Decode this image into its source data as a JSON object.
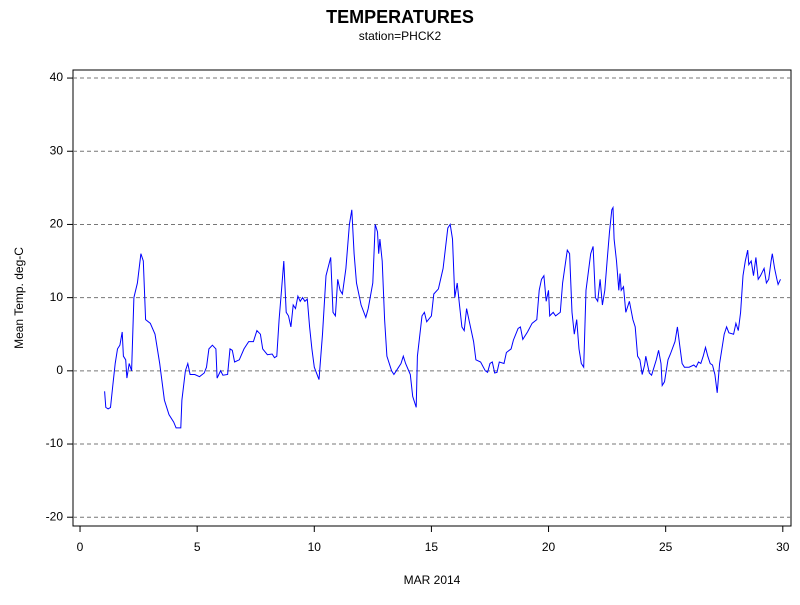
{
  "chart_data": {
    "type": "line",
    "title": "TEMPERATURES",
    "subtitle": "station=PHCK2",
    "x_label": "MAR 2014",
    "y_label": "Mean Temp. deg-C",
    "xlim": [
      -0.3,
      30.35
    ],
    "ylim": [
      -21.2,
      41.1
    ],
    "xticks": [
      0,
      5,
      10,
      15,
      20,
      25,
      30
    ],
    "yticks": [
      -20,
      -10,
      0,
      10,
      20,
      30,
      40
    ],
    "grid": true,
    "x": [
      1.05,
      1.1,
      1.2,
      1.3,
      1.4,
      1.5,
      1.6,
      1.7,
      1.8,
      1.85,
      1.95,
      2.0,
      2.1,
      2.2,
      2.3,
      2.45,
      2.6,
      2.7,
      2.8,
      3.0,
      3.2,
      3.4,
      3.6,
      3.8,
      4.0,
      4.1,
      4.3,
      4.35,
      4.5,
      4.6,
      4.7,
      4.9,
      5.1,
      5.3,
      5.4,
      5.5,
      5.65,
      5.8,
      5.85,
      6.0,
      6.1,
      6.3,
      6.4,
      6.5,
      6.6,
      6.8,
      7.0,
      7.2,
      7.4,
      7.55,
      7.7,
      7.8,
      8.0,
      8.2,
      8.3,
      8.4,
      8.5,
      8.6,
      8.7,
      8.8,
      8.9,
      9.0,
      9.1,
      9.2,
      9.3,
      9.4,
      9.5,
      9.6,
      9.7,
      9.8,
      9.9,
      10.0,
      10.2,
      10.35,
      10.5,
      10.7,
      10.8,
      10.9,
      11.0,
      11.1,
      11.2,
      11.35,
      11.5,
      11.6,
      11.7,
      11.8,
      12.0,
      12.2,
      12.3,
      12.5,
      12.6,
      12.7,
      12.75,
      12.8,
      12.9,
      13.0,
      13.1,
      13.3,
      13.4,
      13.5,
      13.7,
      13.8,
      13.9,
      14.1,
      14.2,
      14.35,
      14.4,
      14.6,
      14.7,
      14.8,
      15.0,
      15.1,
      15.3,
      15.5,
      15.7,
      15.8,
      15.9,
      16.0,
      16.1,
      16.2,
      16.3,
      16.4,
      16.5,
      16.6,
      16.8,
      16.9,
      17.1,
      17.3,
      17.4,
      17.5,
      17.6,
      17.7,
      17.8,
      17.9,
      18.1,
      18.2,
      18.4,
      18.5,
      18.7,
      18.8,
      18.9,
      19.1,
      19.3,
      19.5,
      19.6,
      19.7,
      19.8,
      19.9,
      20.0,
      20.05,
      20.2,
      20.3,
      20.5,
      20.6,
      20.8,
      20.9,
      21.0,
      21.1,
      21.2,
      21.3,
      21.4,
      21.5,
      21.6,
      21.8,
      21.9,
      22.0,
      22.1,
      22.2,
      22.3,
      22.4,
      22.5,
      22.6,
      22.7,
      22.75,
      22.8,
      22.9,
      23.0,
      23.05,
      23.1,
      23.2,
      23.3,
      23.45,
      23.6,
      23.7,
      23.8,
      23.9,
      24.0,
      24.1,
      24.15,
      24.3,
      24.4,
      24.6,
      24.7,
      24.8,
      24.85,
      24.95,
      25.1,
      25.2,
      25.4,
      25.5,
      25.6,
      25.7,
      25.8,
      26.0,
      26.2,
      26.3,
      26.4,
      26.5,
      26.6,
      26.7,
      26.8,
      26.9,
      27.0,
      27.1,
      27.2,
      27.3,
      27.4,
      27.5,
      27.6,
      27.7,
      27.9,
      28.0,
      28.1,
      28.2,
      28.3,
      28.4,
      28.5,
      28.55,
      28.65,
      28.75,
      28.85,
      28.95,
      29.05,
      29.2,
      29.3,
      29.4,
      29.5,
      29.55,
      29.65,
      29.75,
      29.8,
      29.9
    ],
    "series": [
      {
        "name": "Mean Temp",
        "color": "#0000ff",
        "values": [
          -2.8,
          -5,
          -5.2,
          -5,
          -2,
          1,
          3,
          3.5,
          5.3,
          2,
          1.5,
          -1,
          1,
          0,
          10,
          12,
          16,
          15,
          7,
          6.5,
          5,
          1,
          -4,
          -6,
          -7,
          -7.8,
          -7.8,
          -4,
          0,
          1,
          -0.5,
          -0.5,
          -0.8,
          -0.3,
          0.5,
          3,
          3.5,
          3,
          -1,
          0,
          -0.6,
          -0.5,
          3,
          2.8,
          1.2,
          1.5,
          3,
          4,
          4,
          5.5,
          5,
          3,
          2.2,
          2.3,
          1.8,
          2,
          7,
          11,
          15,
          8,
          7.5,
          6,
          9,
          8.5,
          10.2,
          9.5,
          10,
          9.5,
          9.8,
          6,
          3,
          0.5,
          -1.2,
          5,
          13,
          15.5,
          8,
          7.5,
          12.5,
          11,
          10.5,
          14,
          20,
          22,
          16,
          12,
          9,
          7.3,
          8.5,
          12,
          20,
          19,
          16,
          18,
          15,
          7,
          2,
          0,
          -0.5,
          0,
          1,
          2,
          1,
          -0.5,
          -3.5,
          -5,
          2,
          7.5,
          8,
          6.7,
          7.5,
          10.5,
          11.2,
          14,
          19.5,
          20,
          18,
          10,
          12,
          9,
          6,
          5.5,
          8.5,
          7,
          4,
          1.5,
          1.2,
          0,
          -0.2,
          1,
          1.2,
          -0.3,
          -0.2,
          1.2,
          1,
          2.5,
          3,
          4.2,
          5.8,
          6,
          4.3,
          5.3,
          6.5,
          7,
          11,
          12.5,
          13,
          9.5,
          11,
          7.5,
          8,
          7.5,
          8,
          12,
          16.5,
          16,
          8,
          5,
          7,
          3,
          1,
          0.5,
          11,
          16,
          17,
          10,
          9.5,
          12.5,
          9,
          11,
          15,
          19,
          22,
          22.3,
          18,
          15,
          11,
          13.3,
          11,
          11.5,
          8,
          9.5,
          7,
          6,
          2,
          1.5,
          -0.5,
          0.8,
          2,
          -0.3,
          -0.6,
          1.5,
          2.8,
          1,
          -2,
          -1.5,
          1.5,
          2.3,
          4,
          6,
          3.5,
          1,
          0.5,
          0.5,
          0.8,
          0.5,
          1.2,
          1,
          2,
          3.2,
          2,
          1,
          0.8,
          -0.5,
          -3,
          1,
          3,
          5,
          6,
          5.2,
          5,
          6.5,
          5.5,
          8,
          13,
          15,
          16.5,
          14.5,
          15,
          13,
          15.5,
          12.5,
          13,
          14,
          12,
          12.5,
          15,
          16,
          14,
          12.5,
          11.8,
          12.5
        ]
      }
    ]
  }
}
